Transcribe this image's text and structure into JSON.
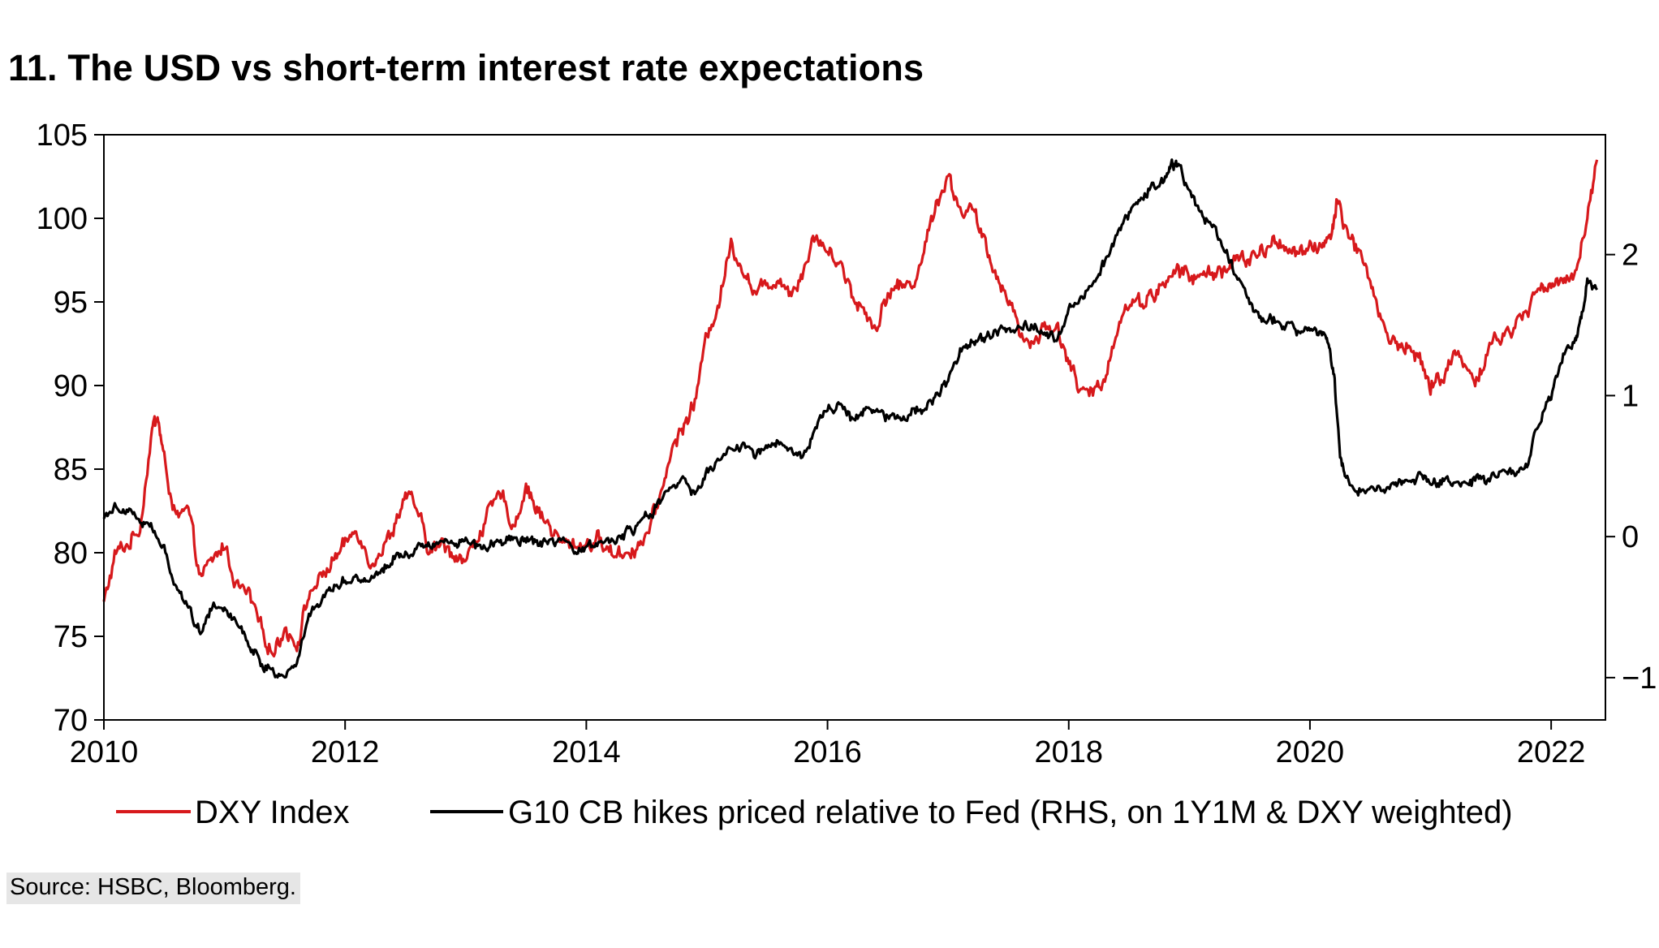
{
  "title": "11. The USD vs short-term interest rate expectations",
  "source": "Source: HSBC, Bloomberg.",
  "colors": {
    "dxy": "#d7191c",
    "g10": "#000000"
  },
  "chart_data": {
    "type": "line",
    "xlim": [
      2010.0,
      2022.45
    ],
    "ylim_left": [
      70,
      105
    ],
    "ylim_right": [
      -1.3,
      2.85
    ],
    "x_ticks": [
      2010,
      2012,
      2014,
      2016,
      2018,
      2020,
      2022
    ],
    "x_tick_labels": [
      "2010",
      "2012",
      "2014",
      "2016",
      "2018",
      "2020",
      "2022"
    ],
    "y_ticks_left": [
      70,
      75,
      80,
      85,
      90,
      95,
      100,
      105
    ],
    "y_tick_labels_left": [
      "70",
      "75",
      "80",
      "85",
      "90",
      "95",
      "100",
      "105"
    ],
    "y_ticks_right": [
      -1,
      0,
      1,
      2
    ],
    "y_tick_labels_right": [
      "−1",
      "0",
      "1",
      "2"
    ],
    "series": [
      {
        "name": "DXY Index",
        "axis": "left",
        "color": "#d7191c",
        "x": [
          2010.0,
          2010.1,
          2010.2,
          2010.3,
          2010.4,
          2010.45,
          2010.5,
          2010.6,
          2010.7,
          2010.8,
          2010.9,
          2011.0,
          2011.1,
          2011.2,
          2011.3,
          2011.4,
          2011.5,
          2011.6,
          2011.7,
          2011.8,
          2011.9,
          2012.0,
          2012.1,
          2012.2,
          2012.3,
          2012.4,
          2012.5,
          2012.6,
          2012.7,
          2012.8,
          2012.9,
          2013.0,
          2013.1,
          2013.2,
          2013.3,
          2013.4,
          2013.5,
          2013.6,
          2013.7,
          2013.8,
          2013.9,
          2014.0,
          2014.1,
          2014.2,
          2014.3,
          2014.4,
          2014.5,
          2014.6,
          2014.7,
          2014.8,
          2014.9,
          2015.0,
          2015.1,
          2015.2,
          2015.3,
          2015.4,
          2015.5,
          2015.6,
          2015.7,
          2015.8,
          2015.9,
          2016.0,
          2016.1,
          2016.2,
          2016.3,
          2016.4,
          2016.5,
          2016.6,
          2016.7,
          2016.8,
          2016.9,
          2017.0,
          2017.1,
          2017.2,
          2017.3,
          2017.4,
          2017.5,
          2017.6,
          2017.7,
          2017.8,
          2017.9,
          2018.0,
          2018.1,
          2018.2,
          2018.3,
          2018.4,
          2018.5,
          2018.6,
          2018.7,
          2018.8,
          2018.9,
          2019.0,
          2019.1,
          2019.2,
          2019.3,
          2019.4,
          2019.5,
          2019.6,
          2019.7,
          2019.8,
          2019.9,
          2020.0,
          2020.1,
          2020.18,
          2020.22,
          2020.3,
          2020.4,
          2020.5,
          2020.6,
          2020.7,
          2020.8,
          2020.9,
          2021.0,
          2021.1,
          2021.2,
          2021.3,
          2021.4,
          2021.5,
          2021.6,
          2021.7,
          2021.8,
          2021.9,
          2022.0,
          2022.1,
          2022.2,
          2022.3,
          2022.38
        ],
        "values": [
          77.0,
          80.0,
          80.5,
          81.5,
          87.5,
          88.0,
          85.5,
          82.0,
          82.5,
          78.5,
          79.5,
          80.5,
          78.0,
          77.5,
          75.5,
          74.0,
          75.5,
          74.5,
          77.5,
          78.5,
          79.5,
          80.5,
          81.5,
          79.5,
          80.0,
          81.5,
          83.5,
          82.5,
          80.0,
          80.5,
          80.0,
          79.5,
          81.0,
          82.5,
          83.5,
          81.5,
          84.0,
          82.5,
          81.5,
          80.5,
          80.5,
          80.5,
          80.8,
          80.0,
          80.0,
          80.2,
          81.0,
          83.0,
          86.0,
          87.5,
          89.0,
          93.0,
          95.0,
          98.5,
          97.0,
          95.5,
          96.0,
          96.5,
          95.5,
          97.0,
          99.0,
          98.0,
          97.5,
          95.5,
          94.5,
          93.5,
          95.5,
          96.0,
          96.0,
          98.0,
          101.0,
          102.5,
          100.5,
          100.5,
          98.5,
          96.5,
          95.5,
          93.0,
          92.5,
          93.5,
          93.5,
          91.5,
          89.5,
          89.5,
          90.5,
          93.5,
          95.0,
          95.0,
          95.5,
          96.0,
          97.0,
          96.5,
          96.5,
          96.8,
          97.0,
          97.5,
          97.5,
          98.0,
          98.5,
          98.5,
          97.8,
          98.0,
          98.5,
          99.0,
          101.0,
          99.5,
          98.0,
          96.5,
          93.5,
          92.5,
          92.5,
          91.5,
          90.0,
          90.5,
          92.0,
          91.0,
          90.5,
          92.5,
          93.0,
          93.5,
          94.5,
          96.0,
          96.0,
          96.0,
          97.0,
          100.0,
          103.5
        ],
        "noise": 0.45
      },
      {
        "name": "G10 CB hikes priced relative to Fed (RHS, on 1Y1M & DXY weighted)",
        "axis": "right",
        "color": "#000000",
        "x": [
          2010.0,
          2010.1,
          2010.2,
          2010.3,
          2010.4,
          2010.5,
          2010.6,
          2010.7,
          2010.8,
          2010.9,
          2011.0,
          2011.1,
          2011.2,
          2011.3,
          2011.4,
          2011.5,
          2011.6,
          2011.7,
          2011.8,
          2011.9,
          2012.0,
          2012.1,
          2012.2,
          2012.3,
          2012.4,
          2012.5,
          2012.6,
          2012.7,
          2012.8,
          2012.9,
          2013.0,
          2013.1,
          2013.2,
          2013.3,
          2013.4,
          2013.5,
          2013.6,
          2013.7,
          2013.8,
          2013.9,
          2014.0,
          2014.1,
          2014.2,
          2014.3,
          2014.4,
          2014.5,
          2014.6,
          2014.7,
          2014.8,
          2014.9,
          2015.0,
          2015.1,
          2015.2,
          2015.3,
          2015.4,
          2015.5,
          2015.6,
          2015.7,
          2015.8,
          2015.9,
          2016.0,
          2016.1,
          2016.2,
          2016.3,
          2016.4,
          2016.5,
          2016.6,
          2016.7,
          2016.8,
          2016.9,
          2017.0,
          2017.1,
          2017.2,
          2017.3,
          2017.4,
          2017.5,
          2017.6,
          2017.7,
          2017.8,
          2017.9,
          2018.0,
          2018.1,
          2018.2,
          2018.3,
          2018.4,
          2018.5,
          2018.6,
          2018.7,
          2018.8,
          2018.85,
          2018.9,
          2019.0,
          2019.1,
          2019.2,
          2019.3,
          2019.4,
          2019.5,
          2019.6,
          2019.7,
          2019.8,
          2019.9,
          2020.0,
          2020.1,
          2020.15,
          2020.2,
          2020.25,
          2020.3,
          2020.4,
          2020.5,
          2020.6,
          2020.7,
          2020.8,
          2020.9,
          2021.0,
          2021.1,
          2021.2,
          2021.3,
          2021.4,
          2021.5,
          2021.6,
          2021.7,
          2021.8,
          2021.9,
          2022.0,
          2022.1,
          2022.2,
          2022.25,
          2022.3,
          2022.38
        ],
        "values": [
          0.15,
          0.22,
          0.2,
          0.12,
          0.05,
          -0.1,
          -0.35,
          -0.5,
          -0.68,
          -0.48,
          -0.5,
          -0.6,
          -0.75,
          -0.9,
          -0.95,
          -1.0,
          -0.88,
          -0.55,
          -0.45,
          -0.35,
          -0.3,
          -0.3,
          -0.3,
          -0.25,
          -0.15,
          -0.12,
          -0.08,
          -0.05,
          -0.02,
          -0.05,
          0.0,
          -0.08,
          -0.05,
          -0.05,
          -0.02,
          -0.02,
          -0.05,
          -0.05,
          -0.05,
          -0.1,
          -0.08,
          -0.05,
          -0.02,
          0.0,
          0.05,
          0.15,
          0.22,
          0.35,
          0.4,
          0.3,
          0.45,
          0.55,
          0.6,
          0.65,
          0.58,
          0.65,
          0.68,
          0.62,
          0.55,
          0.78,
          0.9,
          0.95,
          0.82,
          0.9,
          0.92,
          0.85,
          0.85,
          0.88,
          0.92,
          1.0,
          1.1,
          1.32,
          1.38,
          1.4,
          1.45,
          1.48,
          1.5,
          1.5,
          1.45,
          1.38,
          1.62,
          1.7,
          1.82,
          1.95,
          2.12,
          2.3,
          2.4,
          2.5,
          2.55,
          2.62,
          2.65,
          2.45,
          2.28,
          2.2,
          2.05,
          1.8,
          1.65,
          1.55,
          1.55,
          1.5,
          1.45,
          1.45,
          1.45,
          1.4,
          1.15,
          0.6,
          0.4,
          0.32,
          0.33,
          0.35,
          0.36,
          0.4,
          0.42,
          0.4,
          0.4,
          0.38,
          0.38,
          0.4,
          0.4,
          0.45,
          0.45,
          0.5,
          0.82,
          1.0,
          1.28,
          1.38,
          1.55,
          1.8,
          1.75
        ],
        "noise": 0.035
      }
    ],
    "legend": {
      "placement": "bottom",
      "entries": [
        "DXY Index",
        "G10 CB hikes priced relative to Fed (RHS, on 1Y1M & DXY weighted)"
      ]
    }
  }
}
